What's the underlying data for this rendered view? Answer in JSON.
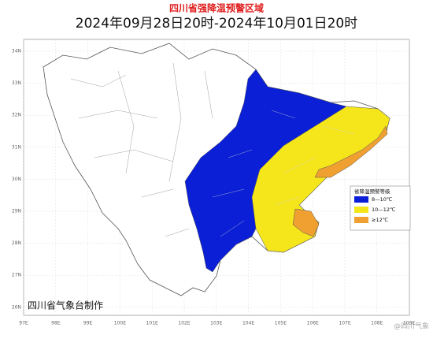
{
  "header": {
    "title": "四川省强降温预警区域",
    "subtitle": "2024年09月28日20时-2024年10月01日20时"
  },
  "axes": {
    "lat_labels": [
      "34N",
      "33N",
      "32N",
      "31N",
      "30N",
      "29N",
      "28N",
      "27N",
      "26N"
    ],
    "lon_labels": [
      "97E",
      "98E",
      "99E",
      "100E",
      "101E",
      "102E",
      "103E",
      "104E",
      "105E",
      "106E",
      "107E",
      "108E",
      "109E"
    ]
  },
  "legend": {
    "title": "省降温预警等级",
    "items": [
      {
        "label": "8—10℃",
        "color": "#0a1fd6"
      },
      {
        "label": "10—12℃",
        "color": "#f5e61c"
      },
      {
        "label": "≥12℃",
        "color": "#f0a030"
      }
    ]
  },
  "footer": "四川省气象台制作",
  "watermark": "@四川气象"
}
